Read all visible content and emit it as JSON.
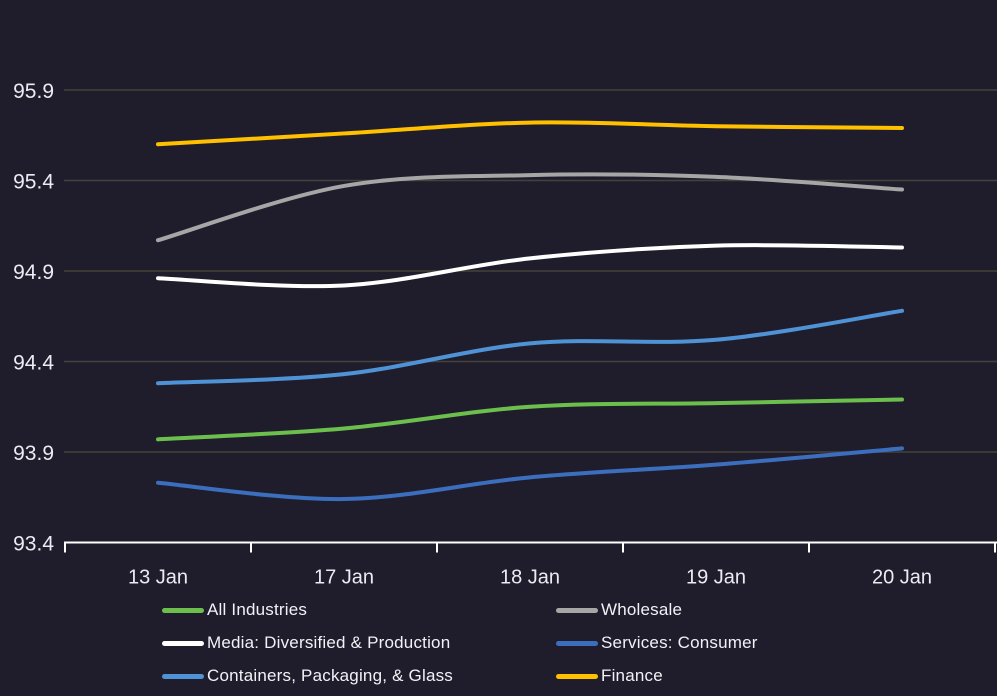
{
  "colors": {
    "background": "#1f1d2b",
    "gridline": "#45423b",
    "axis": "#ffffff",
    "tick_label": "#eceaf2",
    "legend_text": "#f2f1f6"
  },
  "chart_data": {
    "type": "line",
    "title": "",
    "xlabel": "",
    "ylabel": "",
    "grid": true,
    "legend_position": "bottom",
    "x_categories": [
      "13 Jan",
      "17 Jan",
      "18 Jan",
      "19 Jan",
      "20 Jan"
    ],
    "y_ticks": [
      95.9,
      95.4,
      94.9,
      94.4,
      93.9,
      93.4
    ],
    "ylim": [
      93.4,
      96.2
    ],
    "series": [
      {
        "name": "All Industries",
        "color": "#6cbf4d",
        "values": [
          93.97,
          94.03,
          94.15,
          94.17,
          94.19
        ]
      },
      {
        "name": "Wholesale",
        "color": "#a6a6a6",
        "values": [
          95.07,
          95.37,
          95.43,
          95.42,
          95.35
        ]
      },
      {
        "name": "Media: Diversified & Production",
        "color": "#ffffff",
        "values": [
          94.86,
          94.82,
          94.97,
          95.04,
          95.03
        ]
      },
      {
        "name": "Services: Consumer",
        "color": "#3c6ebe",
        "values": [
          93.73,
          93.64,
          93.76,
          93.83,
          93.92
        ]
      },
      {
        "name": "Containers, Packaging, & Glass",
        "color": "#4f93d6",
        "values": [
          94.28,
          94.33,
          94.5,
          94.52,
          94.68
        ]
      },
      {
        "name": "Finance",
        "color": "#ffc000",
        "values": [
          95.6,
          95.66,
          95.72,
          95.7,
          95.69
        ]
      }
    ]
  }
}
